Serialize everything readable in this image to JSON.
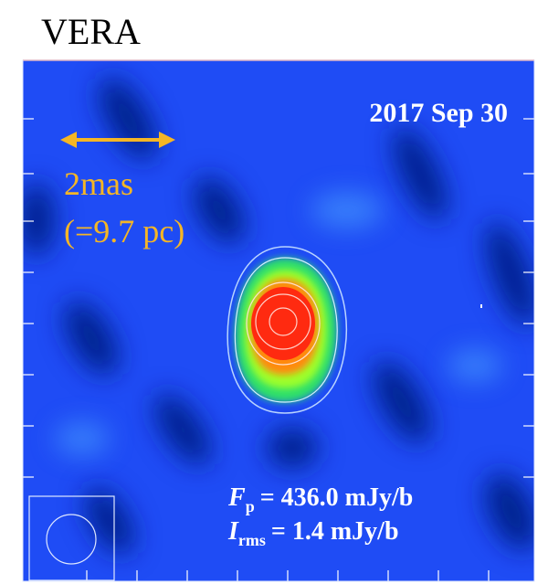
{
  "title": "VERA",
  "image": {
    "date": "2017 Sep 30",
    "scale_bar": {
      "label": "2mas",
      "equivalent": "(=9.7 pc)"
    },
    "peak_flux": {
      "symbol": "F",
      "subscript": "p",
      "value": "= 436.0 mJy/b"
    },
    "rms": {
      "symbol": "I",
      "subscript": "rms",
      "value": "= 1.4 mJy/b"
    }
  }
}
